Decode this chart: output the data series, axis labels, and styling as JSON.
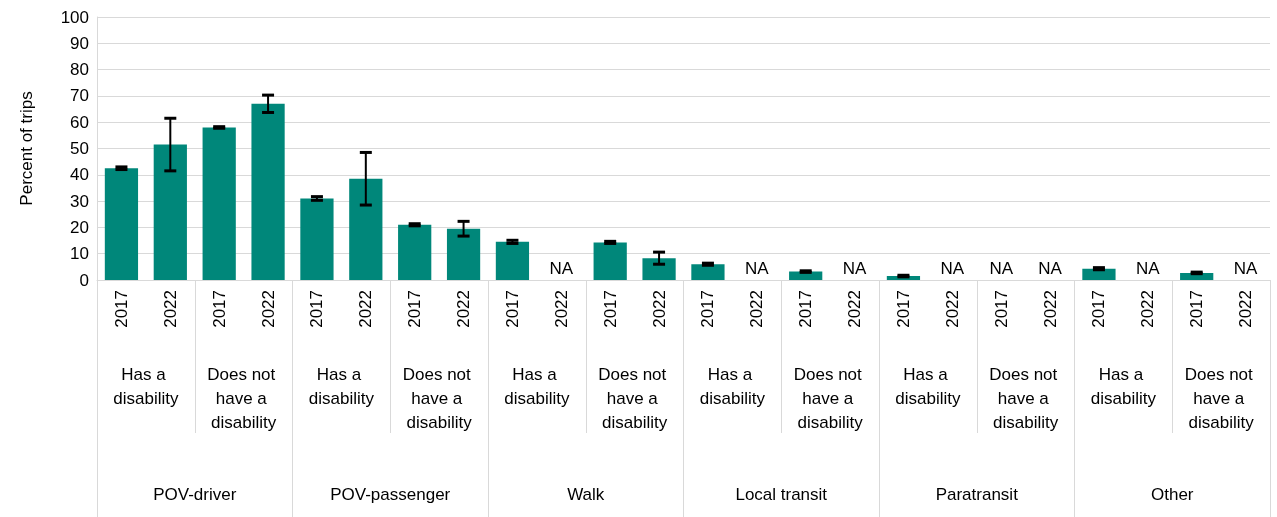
{
  "chart_data": {
    "type": "bar",
    "ylabel": "Percent of trips",
    "categories": [
      "2017",
      "2022",
      "2017",
      "2022",
      "2017",
      "2022",
      "2017",
      "2022",
      "2017",
      "2022",
      "2017",
      "2022",
      "2017",
      "2022",
      "2017",
      "2022",
      "2017",
      "2022",
      "2017",
      "2022",
      "2017",
      "2022",
      "2017",
      "2022"
    ],
    "values": [
      42.5,
      51.5,
      58,
      67,
      31,
      38.5,
      21,
      19.5,
      14.5,
      0,
      14.3,
      8.3,
      6,
      0,
      3.2,
      0,
      1.5,
      0,
      0,
      0,
      4.3,
      0,
      2.7,
      0
    ],
    "errors": [
      0.5,
      10,
      0.3,
      3.3,
      0.7,
      10,
      0.4,
      2.8,
      0.6,
      null,
      0.4,
      2.3,
      0.4,
      null,
      0.3,
      null,
      0.3,
      null,
      null,
      null,
      0.4,
      null,
      0.3,
      null
    ],
    "value_labels": [
      null,
      null,
      null,
      null,
      null,
      null,
      null,
      null,
      null,
      "NA",
      null,
      null,
      null,
      "NA",
      null,
      "NA",
      null,
      "NA",
      "NA",
      "NA",
      null,
      "NA",
      null,
      "NA"
    ],
    "color": "#00877a",
    "ylim": [
      0,
      100
    ],
    "yticks": [
      0,
      10,
      20,
      30,
      40,
      50,
      60,
      70,
      80,
      90,
      100
    ],
    "grid": "y",
    "annotations": [
      "Has a disability",
      "Does not have a disability",
      "Has a disability",
      "Does not have a disability",
      "Has a disability",
      "Does not have a disability",
      "Has a disability",
      "Does not have a disability",
      "Has a disability",
      "Does not have a disability",
      "Has a disability",
      "Does not have a disability",
      "POV-driver",
      "POV-passenger",
      "Walk",
      "Local transit",
      "Paratransit",
      "Other"
    ]
  }
}
